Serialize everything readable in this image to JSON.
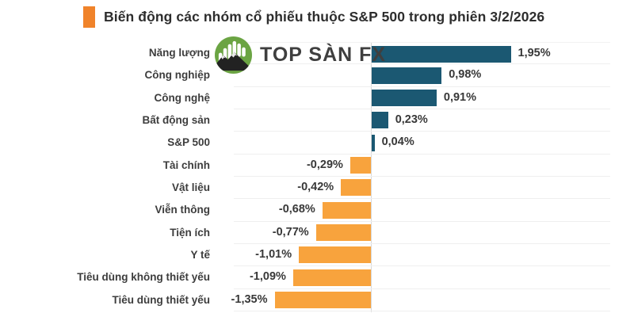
{
  "title": {
    "text": "Biến động các nhóm cổ phiếu thuộc S&P 500 trong phiên 3/2/2026",
    "bullet_color": "#f0832a"
  },
  "logo": {
    "text": "TOP SÀN FX",
    "icon": "mountain-candlestick-icon",
    "circle_color": "#6ba443",
    "mountain_color": "#222222"
  },
  "chart_data": {
    "type": "bar",
    "orientation": "horizontal",
    "title": "Biến động các nhóm cổ phiếu thuộc S&P 500 trong phiên 3/2/2026",
    "categories": [
      "Năng lượng",
      "Công nghiệp",
      "Công nghệ",
      "Bất động sản",
      "S&P 500",
      "Tài chính",
      "Vật liệu",
      "Viễn thông",
      "Tiện ích",
      "Y tế",
      "Tiêu dùng không thiết yếu",
      "Tiêu dùng thiết yếu"
    ],
    "values": [
      1.95,
      0.98,
      0.91,
      0.23,
      0.04,
      -0.29,
      -0.42,
      -0.68,
      -0.77,
      -1.01,
      -1.09,
      -1.35
    ],
    "labels": [
      "1,95%",
      "0,98%",
      "0,91%",
      "0,23%",
      "0,04%",
      "-0,29%",
      "-0,42%",
      "-0,68%",
      "-0,77%",
      "-1,01%",
      "-1,09%",
      "-1,35%"
    ],
    "unit": "%",
    "xlim": [
      -1.92,
      3.36
    ],
    "positive_color": "#1b5872",
    "negative_color": "#f8a33d",
    "gridlines": "horizontal-light",
    "gridline_color": "#efefef",
    "zero_axis_color": "#d8d8d8",
    "legend": "none",
    "value_label_position": "outside-end"
  }
}
